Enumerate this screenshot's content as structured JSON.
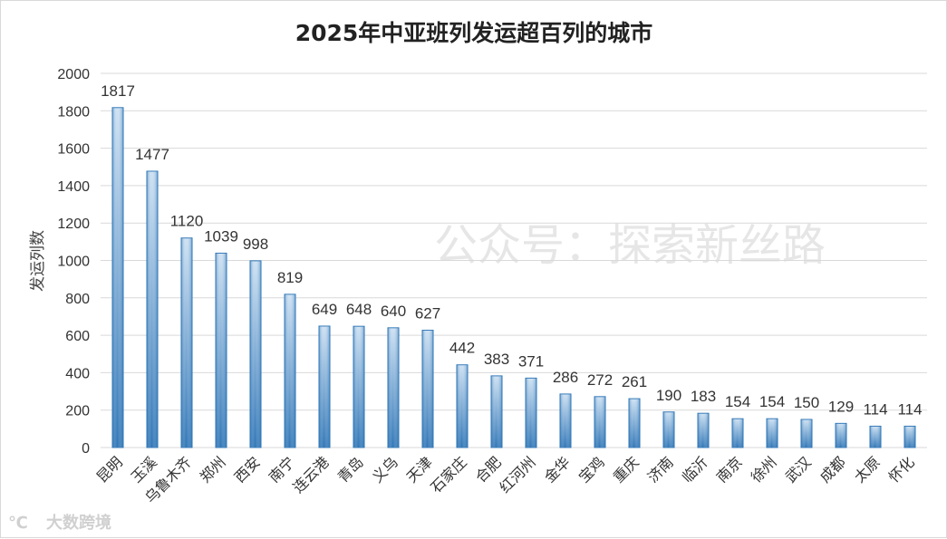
{
  "watermark": "公众号：探索新丝路",
  "logo_text": "大数跨境",
  "logo_mark": "℃",
  "colors": {
    "bar_dark": "#2e75b6",
    "bar_light": "#bdd7ee",
    "grid": "#d9d9d9"
  },
  "chart_data": {
    "type": "bar",
    "title": "2025年中亚班列发运超百列的城市",
    "xlabel": "",
    "ylabel": "发运列数",
    "ylim": [
      0,
      2000
    ],
    "yticks": [
      0,
      200,
      400,
      600,
      800,
      1000,
      1200,
      1400,
      1600,
      1800,
      2000
    ],
    "grid": true,
    "categories": [
      "昆明",
      "玉溪",
      "乌鲁木齐",
      "郑州",
      "西安",
      "南宁",
      "连云港",
      "青岛",
      "义乌",
      "天津",
      "石家庄",
      "合肥",
      "红河州",
      "金华",
      "宝鸡",
      "重庆",
      "济南",
      "临沂",
      "南京",
      "徐州",
      "武汉",
      "成都",
      "太原",
      "怀化"
    ],
    "values": [
      1817,
      1477,
      1120,
      1039,
      998,
      819,
      649,
      648,
      640,
      627,
      442,
      383,
      371,
      286,
      272,
      261,
      190,
      183,
      154,
      154,
      150,
      129,
      114,
      114
    ]
  }
}
